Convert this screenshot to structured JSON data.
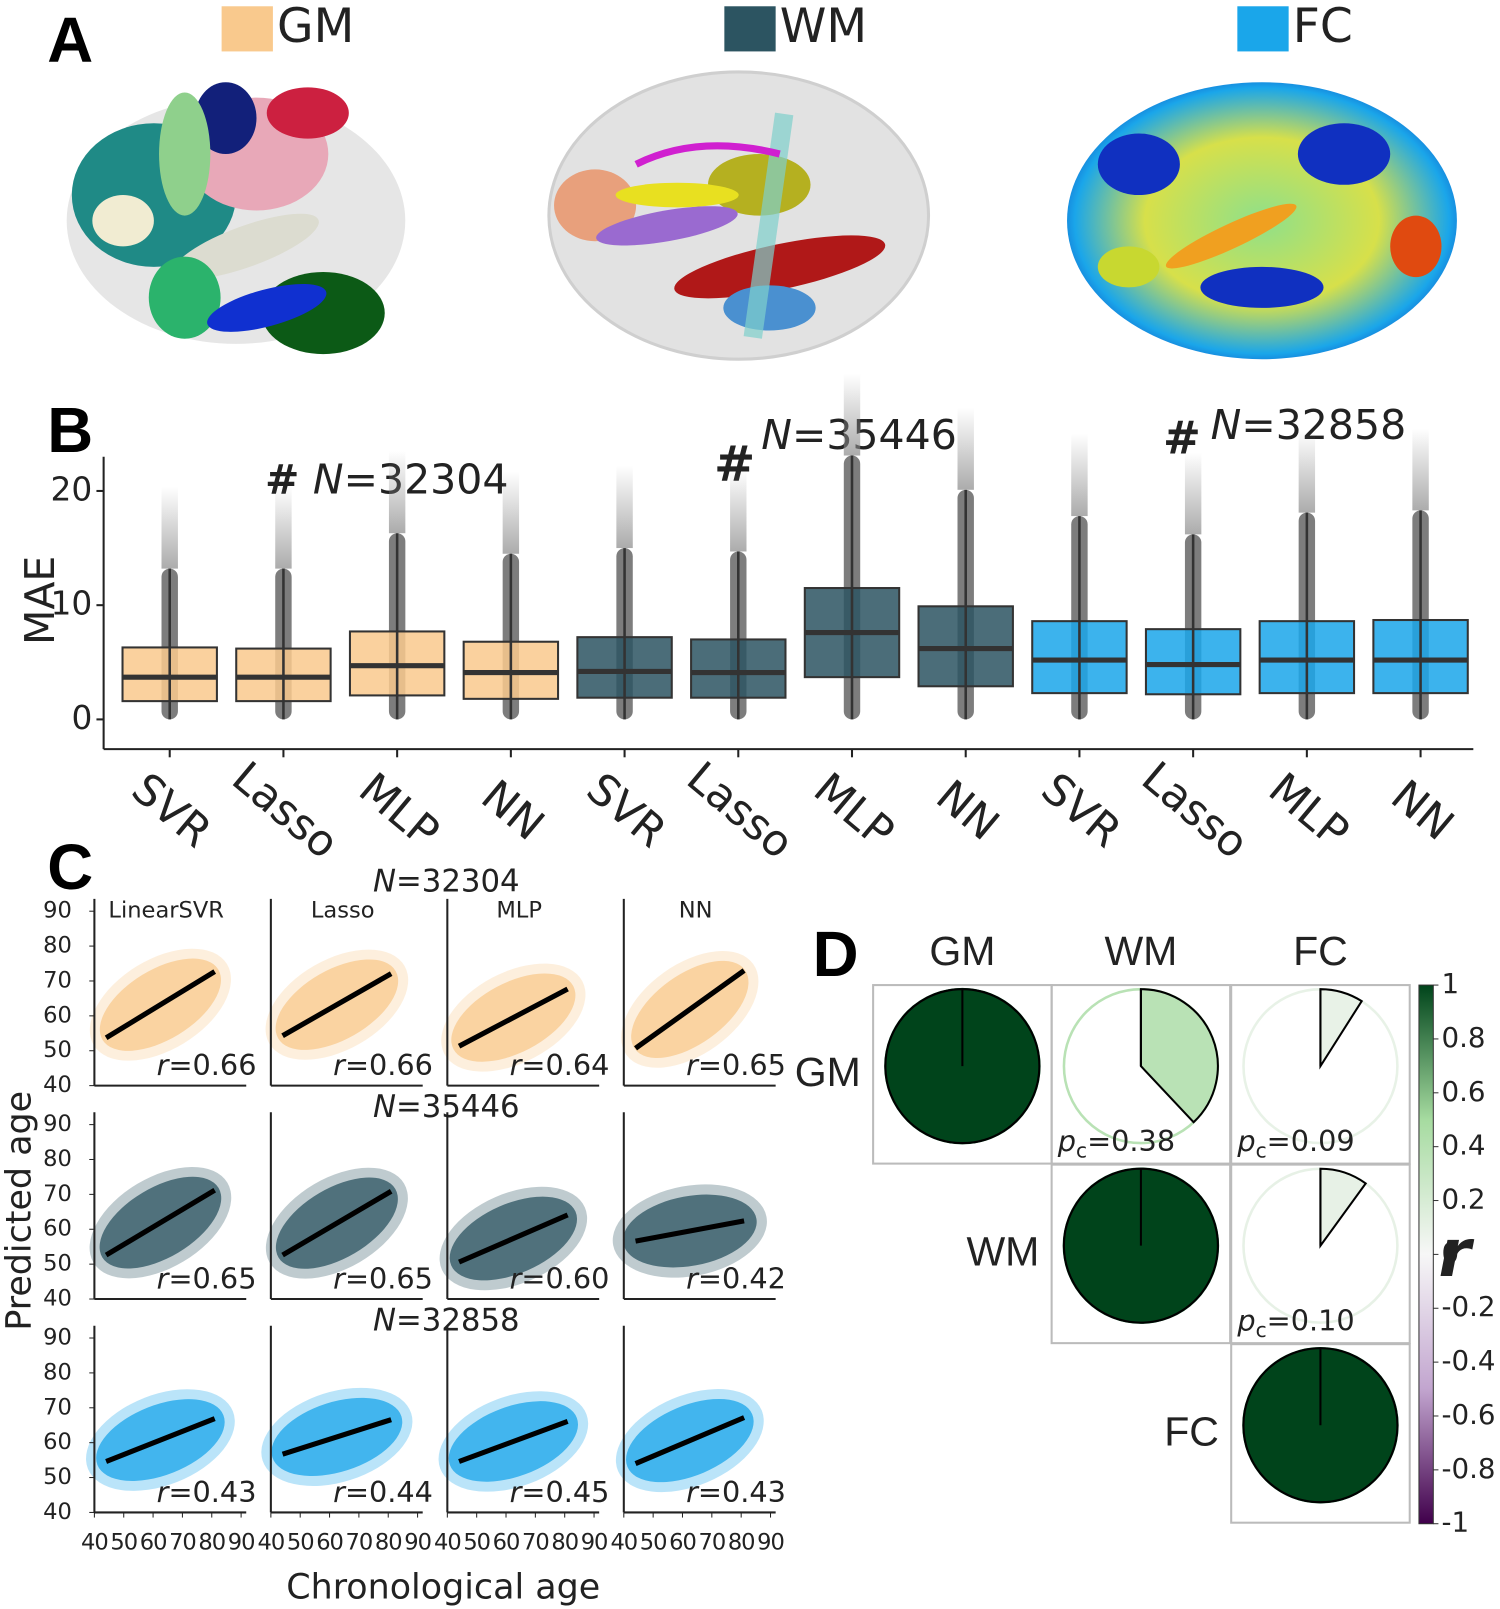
{
  "panel_labels": [
    "A",
    "B",
    "C",
    "D"
  ],
  "modality_legend": [
    {
      "name": "GM",
      "color": "#f9c98d"
    },
    {
      "name": "WM",
      "color": "#2c5461"
    },
    {
      "name": "FC",
      "color": "#1aa6ea"
    }
  ],
  "chart_data": [
    {
      "type": "box",
      "ylabel": "MAE",
      "ylim": [
        -2.6,
        23
      ],
      "yticks": [
        0,
        10,
        20
      ],
      "categories": [
        "SVR",
        "Lasso",
        "MLP",
        "NN",
        "SVR",
        "Lasso",
        "MLP",
        "NN",
        "SVR",
        "Lasso",
        "MLP",
        "NN"
      ],
      "series": [
        {
          "name": "GM",
          "marker": "#",
          "label": "N=32304",
          "color": "#f9c98d",
          "values": [
            {
              "whislo": 0,
              "q1": 1.6,
              "med": 3.7,
              "q3": 6.3,
              "whishi": 13.2
            },
            {
              "whislo": 0,
              "q1": 1.6,
              "med": 3.7,
              "q3": 6.2,
              "whishi": 13.2
            },
            {
              "whislo": 0,
              "q1": 2.1,
              "med": 4.7,
              "q3": 7.7,
              "whishi": 16.3
            },
            {
              "whislo": 0,
              "q1": 1.8,
              "med": 4.1,
              "q3": 6.8,
              "whishi": 14.5
            }
          ]
        },
        {
          "name": "WM",
          "marker": "#",
          "label": "N=35446",
          "color": "#2c5461",
          "values": [
            {
              "whislo": 0,
              "q1": 1.9,
              "med": 4.2,
              "q3": 7.2,
              "whishi": 15.0
            },
            {
              "whislo": 0,
              "q1": 1.9,
              "med": 4.1,
              "q3": 7.0,
              "whishi": 14.7
            },
            {
              "whislo": 0,
              "q1": 3.7,
              "med": 7.6,
              "q3": 11.5,
              "whishi": 23.1
            },
            {
              "whislo": 0,
              "q1": 2.9,
              "med": 6.2,
              "q3": 9.9,
              "whishi": 20.1
            }
          ]
        },
        {
          "name": "FC",
          "marker": "#",
          "label": "N=32858",
          "color": "#1aa6ea",
          "values": [
            {
              "whislo": 0,
              "q1": 2.3,
              "med": 5.2,
              "q3": 8.6,
              "whishi": 17.8
            },
            {
              "whislo": 0,
              "q1": 2.2,
              "med": 4.8,
              "q3": 7.9,
              "whishi": 16.2
            },
            {
              "whislo": 0,
              "q1": 2.3,
              "med": 5.2,
              "q3": 8.6,
              "whishi": 18.1
            },
            {
              "whislo": 0,
              "q1": 2.3,
              "med": 5.2,
              "q3": 8.7,
              "whishi": 18.3
            }
          ]
        }
      ]
    },
    {
      "type": "scatter-grid",
      "xlabel": "Chronological age",
      "ylabel": "Predicted age",
      "xlim": [
        40,
        90
      ],
      "ylim": [
        40,
        90
      ],
      "xticks": [
        40,
        50,
        60,
        70,
        80,
        90
      ],
      "yticks": [
        40,
        50,
        60,
        70,
        80,
        90
      ],
      "columns": [
        "LinearSVR",
        "Lasso",
        "MLP",
        "NN"
      ],
      "series": [
        {
          "name": "N=32304",
          "color": "#f9c98d",
          "fit_x": [
            [
              44,
              81
            ],
            [
              44,
              81
            ],
            [
              44,
              81
            ],
            [
              44,
              81
            ]
          ],
          "fit_y": [
            [
              53.7,
              72.7
            ],
            [
              54.3,
              72.1
            ],
            [
              51.3,
              67.7
            ],
            [
              50.7,
              73
            ]
          ],
          "values": [
            0.66,
            0.66,
            0.64,
            0.65
          ],
          "value_labels": [
            "r=0.66",
            "r=0.66",
            "r=0.64",
            "r=0.65"
          ]
        },
        {
          "name": "N=35446",
          "color": "#2c5461",
          "fit_x": [
            [
              44,
              81
            ],
            [
              44,
              81
            ],
            [
              44,
              81
            ],
            [
              44,
              81
            ]
          ],
          "fit_y": [
            [
              52.6,
              71.2
            ],
            [
              52.6,
              70.9
            ],
            [
              50.6,
              64.1
            ],
            [
              56.6,
              62.4
            ]
          ],
          "values": [
            0.65,
            0.65,
            0.6,
            0.42
          ],
          "value_labels": [
            "r=0.65",
            "r=0.65",
            "r=0.60",
            "r=0.42"
          ]
        },
        {
          "name": "N=32858",
          "color": "#1aa6ea",
          "fit_x": [
            [
              44,
              81
            ],
            [
              44,
              81
            ],
            [
              44,
              81
            ],
            [
              44,
              81
            ]
          ],
          "fit_y": [
            [
              54.6,
              66.9
            ],
            [
              56.7,
              66.6
            ],
            [
              54.6,
              66.1
            ],
            [
              54,
              67.2
            ]
          ],
          "values": [
            0.43,
            0.44,
            0.45,
            0.43
          ],
          "value_labels": [
            "r=0.43",
            "r=0.44",
            "r=0.45",
            "r=0.43"
          ]
        }
      ]
    },
    {
      "type": "pie-matrix",
      "rows": [
        "GM",
        "WM",
        "FC"
      ],
      "columns": [
        "GM",
        "WM",
        "FC"
      ],
      "values": [
        [
          1,
          0.38,
          0.09
        ],
        [
          null,
          1,
          0.1
        ],
        [
          null,
          null,
          1
        ]
      ],
      "value_labels": [
        [
          null,
          "pc=0.38",
          "pc=0.09"
        ],
        [
          null,
          null,
          "pc=0.10"
        ],
        [
          null,
          null,
          null
        ]
      ],
      "colorbar_label": "r",
      "clim": [
        -1,
        1
      ],
      "cticks": [
        1,
        0.8,
        0.6,
        0.4,
        0.2,
        0,
        -0.2,
        -0.4,
        -0.6,
        -0.8,
        -1
      ],
      "colormap": [
        "#40004b",
        "#c2a5cf",
        "#f7f7f7",
        "#a6dba0",
        "#00441b"
      ]
    }
  ]
}
